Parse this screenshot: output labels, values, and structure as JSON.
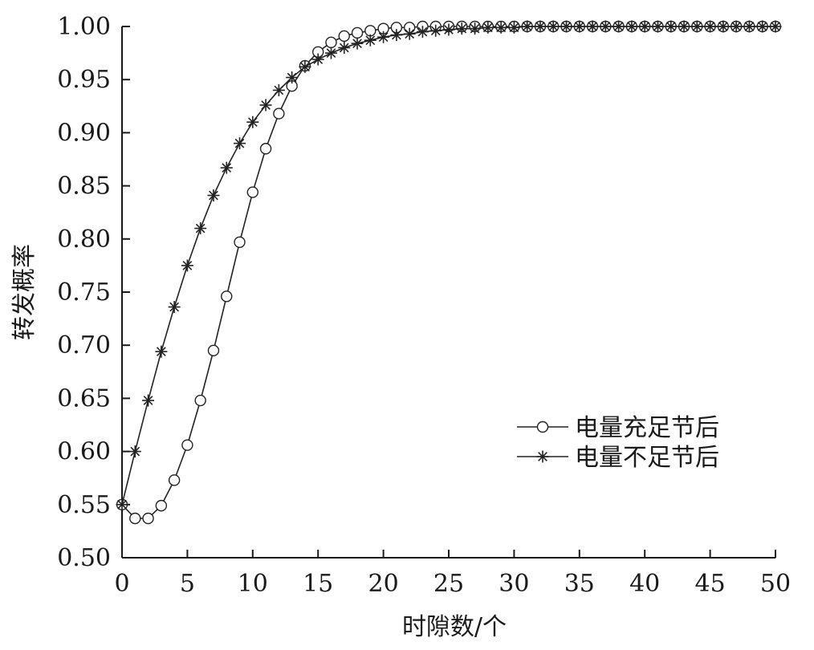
{
  "chart_data": {
    "type": "line",
    "xlabel": "时隙数/个",
    "ylabel": "转发概率",
    "xlim": [
      0,
      50
    ],
    "ylim": [
      0.5,
      1.0
    ],
    "xticks": [
      "0",
      "5",
      "10",
      "15",
      "20",
      "25",
      "30",
      "35",
      "40",
      "45",
      "50"
    ],
    "yticks": [
      "0.50",
      "0.55",
      "0.60",
      "0.65",
      "0.70",
      "0.75",
      "0.80",
      "0.85",
      "0.90",
      "0.95",
      "1.00"
    ],
    "grid": false,
    "legend_position": "bottom-right",
    "x": [
      0,
      1,
      2,
      3,
      4,
      5,
      6,
      7,
      8,
      9,
      10,
      11,
      12,
      13,
      14,
      15,
      16,
      17,
      18,
      19,
      20,
      21,
      22,
      23,
      24,
      25,
      26,
      27,
      28,
      29,
      30,
      31,
      32,
      33,
      34,
      35,
      36,
      37,
      38,
      39,
      40,
      41,
      42,
      43,
      44,
      45,
      46,
      47,
      48,
      49,
      50
    ],
    "series": [
      {
        "name": "电量充足节后",
        "marker": "circle",
        "values": [
          0.55,
          0.537,
          0.537,
          0.549,
          0.573,
          0.606,
          0.648,
          0.695,
          0.746,
          0.797,
          0.844,
          0.885,
          0.918,
          0.944,
          0.963,
          0.976,
          0.985,
          0.991,
          0.994,
          0.996,
          0.998,
          0.999,
          0.999,
          1.0,
          1.0,
          1.0,
          1.0,
          1.0,
          1.0,
          1.0,
          1.0,
          1.0,
          1.0,
          1.0,
          1.0,
          1.0,
          1.0,
          1.0,
          1.0,
          1.0,
          1.0,
          1.0,
          1.0,
          1.0,
          1.0,
          1.0,
          1.0,
          1.0,
          1.0,
          1.0,
          1.0
        ]
      },
      {
        "name": "电量不足节后",
        "marker": "star",
        "values": [
          0.55,
          0.6,
          0.648,
          0.694,
          0.736,
          0.775,
          0.81,
          0.841,
          0.867,
          0.89,
          0.91,
          0.926,
          0.94,
          0.952,
          0.962,
          0.969,
          0.975,
          0.98,
          0.984,
          0.987,
          0.99,
          0.992,
          0.993,
          0.995,
          0.996,
          0.997,
          0.998,
          0.998,
          0.999,
          0.999,
          0.999,
          1.0,
          1.0,
          1.0,
          1.0,
          1.0,
          1.0,
          1.0,
          1.0,
          1.0,
          1.0,
          1.0,
          1.0,
          1.0,
          1.0,
          1.0,
          1.0,
          1.0,
          1.0,
          1.0,
          1.0
        ]
      }
    ]
  }
}
